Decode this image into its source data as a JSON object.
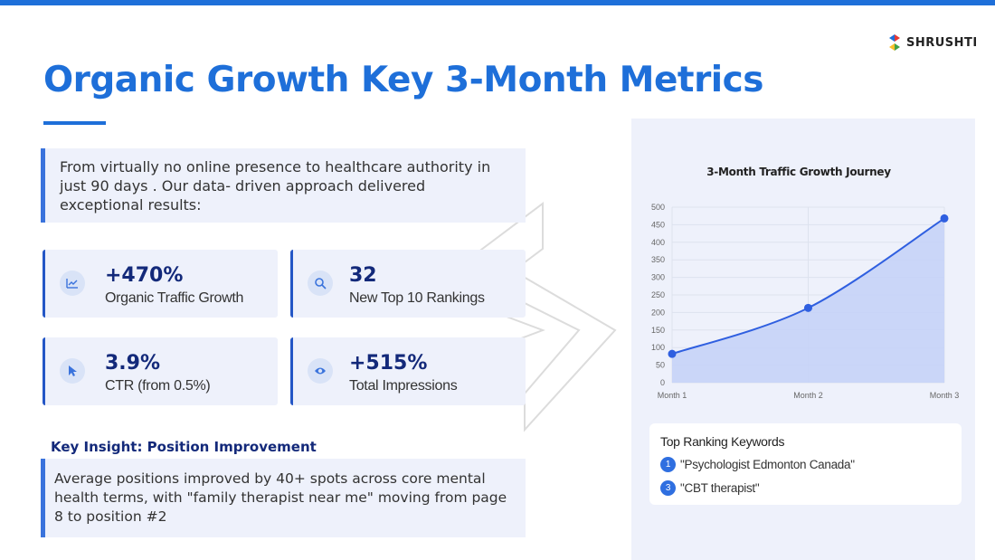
{
  "brand": {
    "name": "SHRUSHTI"
  },
  "title": "Organic Growth Key 3-Month Metrics",
  "intro": "From virtually no online presence to healthcare authority in just 90 days . Our data- driven approach delivered exceptional results:",
  "metrics": [
    {
      "value": "+470%",
      "label": "Organic Traffic Growth",
      "icon": "trend-chart-icon"
    },
    {
      "value": "32",
      "label": "New Top 10 Rankings",
      "icon": "search-icon"
    },
    {
      "value": "3.9%",
      "label": "CTR (from 0.5%)",
      "icon": "cursor-icon"
    },
    {
      "value": "+515%",
      "label": "Total Impressions",
      "icon": "eye-icon"
    }
  ],
  "insight": {
    "title": "Key Insight: Position Improvement",
    "text": "Average positions improved by 40+ spots across core mental health terms, with \"family therapist near me\" moving from page 8 to position #2"
  },
  "colors": {
    "accent": "#1e6fd9",
    "navy": "#13297a",
    "card_bg": "#eef1fb",
    "line": "#2f5fe0",
    "fill": "#c5d3f7"
  },
  "chart_data": {
    "type": "area",
    "title": "3-Month Traffic Growth Journey",
    "categories": [
      "Month 1",
      "Month 2",
      "Month 3"
    ],
    "values": [
      82,
      213,
      468
    ],
    "ylim": [
      0,
      500
    ],
    "yticks": [
      0,
      50,
      100,
      150,
      200,
      250,
      300,
      350,
      400,
      450,
      500
    ],
    "grid": true,
    "legend": "none"
  },
  "keywords": {
    "title": "Top Ranking Keywords",
    "items": [
      {
        "rank": "1",
        "text": "\"Psychologist  Edmonton Canada\""
      },
      {
        "rank": "3",
        "text": "\"CBT therapist\""
      }
    ]
  }
}
